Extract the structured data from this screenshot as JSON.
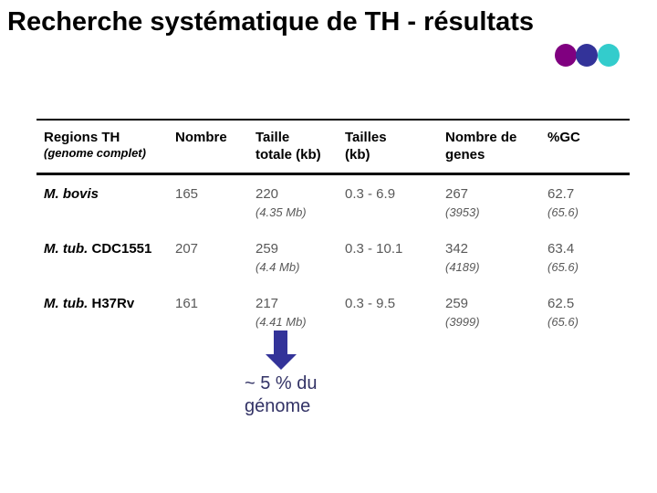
{
  "slide": {
    "title": "Recherche systématique de TH - résultats"
  },
  "decoration": {
    "dot_colors": {
      "purple": "#800080",
      "blue": "#333399",
      "teal": "#33cccc"
    }
  },
  "table": {
    "headers": [
      {
        "line1": "Regions TH",
        "line2": "(genome complet)"
      },
      {
        "line1": "Nombre",
        "line2": ""
      },
      {
        "line1": "Taille",
        "line2": "totale (kb)"
      },
      {
        "line1": "Tailles",
        "line2": "(kb)"
      },
      {
        "line1": "Nombre de",
        "line2": "genes"
      },
      {
        "line1": "%GC",
        "line2": ""
      }
    ],
    "rows": [
      {
        "label_italic": "M. bovis",
        "label_regular": "",
        "nombre": "165",
        "taille_totale": "220",
        "taille_totale_sub": "(4.35 Mb)",
        "tailles": "0.3 - 6.9",
        "nombre_genes": "267",
        "nombre_genes_sub": "(3953)",
        "gc": "62.7",
        "gc_sub": "(65.6)"
      },
      {
        "label_italic": "M. tub.",
        "label_regular": " CDC1551",
        "nombre": "207",
        "taille_totale": "259",
        "taille_totale_sub": "(4.4 Mb)",
        "tailles": "0.3 - 10.1",
        "nombre_genes": "342",
        "nombre_genes_sub": "(4189)",
        "gc": "63.4",
        "gc_sub": "(65.6)"
      },
      {
        "label_italic": "M. tub.",
        "label_regular": " H37Rv",
        "nombre": "161",
        "taille_totale": "217",
        "taille_totale_sub": "(4.41 Mb)",
        "tailles": "0.3 - 9.5",
        "nombre_genes": "259",
        "nombre_genes_sub": "(3999)",
        "gc": "62.5",
        "gc_sub": "(65.6)"
      }
    ]
  },
  "annotation": {
    "line1": "~ 5 % du",
    "line2": "génome",
    "text_color": "#333366",
    "arrow_color": "#333399"
  }
}
